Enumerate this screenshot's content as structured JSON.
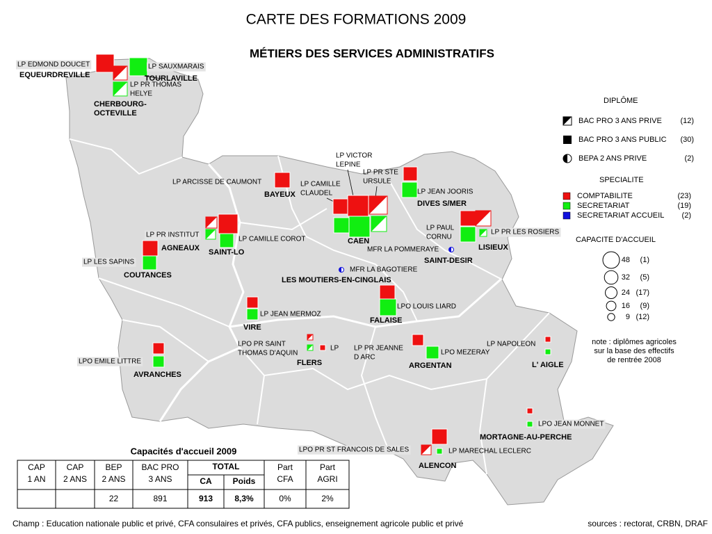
{
  "title": "CARTE DES FORMATIONS 2009",
  "subtitle": "MÉTIERS DES SERVICES ADMINISTRATIFS",
  "towns": [
    {
      "lines": [
        "EQUEURDREVILLE"
      ]
    },
    {
      "lines": [
        "TOURLAVILLE"
      ]
    },
    {
      "lines": [
        "CHERBOURG-",
        "OCTEVILLE"
      ]
    },
    {
      "lines": [
        "BAYEUX"
      ]
    },
    {
      "lines": [
        "DIVES S/MER"
      ]
    },
    {
      "lines": [
        "AGNEAUX"
      ]
    },
    {
      "lines": [
        "SAINT-LO"
      ]
    },
    {
      "lines": [
        "CAEN"
      ]
    },
    {
      "lines": [
        "LISIEUX"
      ]
    },
    {
      "lines": [
        "SAINT-DESIR"
      ]
    },
    {
      "lines": [
        "COUTANCES"
      ]
    },
    {
      "lines": [
        "LES MOUTIERS-EN-CINGLAIS"
      ]
    },
    {
      "lines": [
        "FALAISE"
      ]
    },
    {
      "lines": [
        "VIRE"
      ]
    },
    {
      "lines": [
        "FLERS"
      ]
    },
    {
      "lines": [
        "ARGENTAN"
      ]
    },
    {
      "lines": [
        "L' AIGLE"
      ]
    },
    {
      "lines": [
        "AVRANCHES"
      ]
    },
    {
      "lines": [
        "MORTAGNE-AU-PERCHE"
      ]
    },
    {
      "lines": [
        "ALENCON"
      ]
    }
  ],
  "establishments": [
    {
      "lines": [
        "LP EDMOND DOUCET"
      ]
    },
    {
      "lines": [
        "LP SAUXMARAIS"
      ]
    },
    {
      "lines": [
        "LP PR THOMAS",
        "HELYE"
      ]
    },
    {
      "lines": [
        "LP VICTOR",
        "LEPINE"
      ]
    },
    {
      "lines": [
        "LP PR STE",
        "URSULE"
      ]
    },
    {
      "lines": [
        "LP CAMILLE",
        "CLAUDEL"
      ]
    },
    {
      "lines": [
        "LP ARCISSE DE CAUMONT"
      ]
    },
    {
      "lines": [
        "LP JEAN JOORIS"
      ]
    },
    {
      "lines": [
        "LP PR INSTITUT"
      ]
    },
    {
      "lines": [
        "LP CAMILLE COROT"
      ]
    },
    {
      "lines": [
        "LP PAUL",
        "CORNU"
      ]
    },
    {
      "lines": [
        "LP PR LES ROSIERS"
      ]
    },
    {
      "lines": [
        "MFR LA POMMERAYE"
      ]
    },
    {
      "lines": [
        "LP LES SAPINS"
      ]
    },
    {
      "lines": [
        "MFR LA BAGOTIERE"
      ]
    },
    {
      "lines": [
        "LPO LOUIS LIARD"
      ]
    },
    {
      "lines": [
        "LP JEAN MERMOZ"
      ]
    },
    {
      "lines": [
        "LPO PR SAINT",
        "THOMAS D'AQUIN"
      ]
    },
    {
      "lines": [
        "LP"
      ]
    },
    {
      "lines": [
        "LP PR JEANNE",
        "D ARC"
      ]
    },
    {
      "lines": [
        "LP NAPOLEON"
      ]
    },
    {
      "lines": [
        "LPO MEZERAY"
      ]
    },
    {
      "lines": [
        "LPO EMILE LITTRE"
      ]
    },
    {
      "lines": [
        "LPO JEAN MONNET"
      ]
    },
    {
      "lines": [
        "LPO PR ST FRANCOIS DE SALES"
      ]
    },
    {
      "lines": [
        "LP MARECHAL LECLERC"
      ]
    }
  ],
  "legend": {
    "diplome": {
      "heading": "DIPLÔME",
      "items": [
        {
          "label": "BAC PRO 3 ANS PRIVE",
          "count": "(12)"
        },
        {
          "label": "BAC PRO 3 ANS PUBLIC",
          "count": "(30)"
        },
        {
          "label": "BEPA 2 ANS PRIVE",
          "count": "(2)"
        }
      ]
    },
    "specialite": {
      "heading": "SPECIALITE",
      "items": [
        {
          "label": "COMPTABILITE",
          "count": "(23)",
          "color": "#ee1111"
        },
        {
          "label": "SECRETARIAT",
          "count": "(19)",
          "color": "#11ee11"
        },
        {
          "label": "SECRETARIAT ACCUEIL",
          "count": "(2)",
          "color": "#1111dd"
        }
      ]
    },
    "capacite": {
      "heading": "CAPACITE D'ACCUEIL",
      "items": [
        {
          "value": 48,
          "count": "(1)"
        },
        {
          "value": 32,
          "count": "(5)"
        },
        {
          "value": 24,
          "count": "(17)"
        },
        {
          "value": 16,
          "count": "(9)"
        },
        {
          "value": 9,
          "count": "(12)"
        }
      ]
    }
  },
  "note": {
    "lines": [
      "note : diplômes agricoles",
      "sur la base des effectifs",
      "de rentrée 2008"
    ]
  },
  "table": {
    "title": "Capacités d'accueil 2009",
    "headers": [
      [
        "CAP",
        "1 AN"
      ],
      [
        "CAP",
        "2 ANS"
      ],
      [
        "BEP",
        "2 ANS"
      ],
      [
        "BAC PRO",
        "3 ANS"
      ],
      [
        "Part",
        "CFA"
      ],
      [
        "Part",
        "AGRI"
      ]
    ],
    "total": "TOTAL",
    "subheaders": [
      "CA",
      "Poids"
    ],
    "row": [
      "22",
      "891",
      "913",
      "8,3%",
      "0%",
      "2%"
    ]
  },
  "footer": {
    "champ": "Champ : Education nationale public et privé, CFA consulaires et privés, CFA publics, enseignement agricole public et privé",
    "sources": "sources : rectorat, CRBN, DRAF"
  }
}
